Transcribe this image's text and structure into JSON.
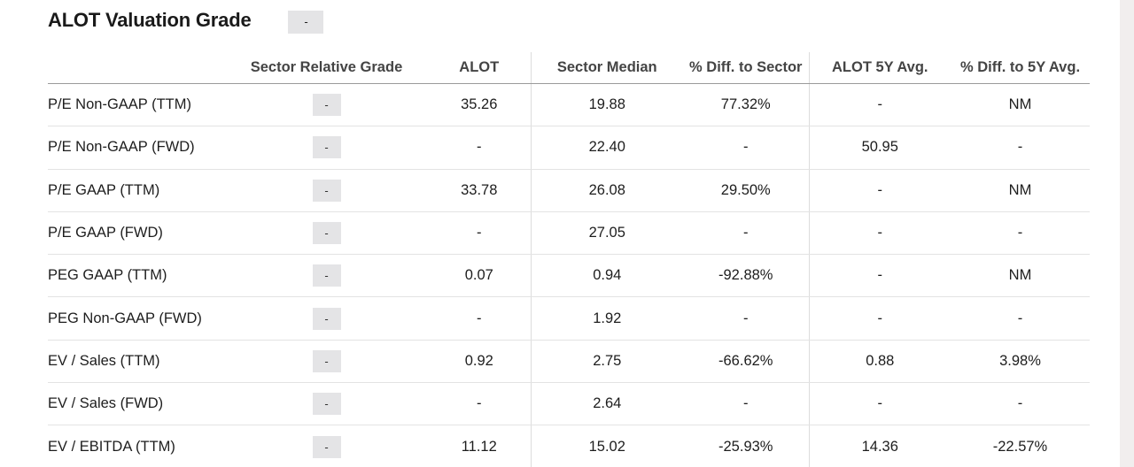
{
  "header": {
    "title": "ALOT Valuation Grade",
    "grade": "-"
  },
  "table": {
    "columns": [
      "",
      "Sector Relative Grade",
      "ALOT",
      "Sector Median",
      "% Diff. to Sector",
      "ALOT 5Y Avg.",
      "% Diff. to 5Y Avg."
    ],
    "rows": [
      {
        "metric": "P/E Non-GAAP (TTM)",
        "grade": "-",
        "alot": "35.26",
        "sector_median": "19.88",
        "diff_sector": "77.32%",
        "avg5y": "-",
        "diff_5y": "NM"
      },
      {
        "metric": "P/E Non-GAAP (FWD)",
        "grade": "-",
        "alot": "-",
        "sector_median": "22.40",
        "diff_sector": "-",
        "avg5y": "50.95",
        "diff_5y": "-"
      },
      {
        "metric": "P/E GAAP (TTM)",
        "grade": "-",
        "alot": "33.78",
        "sector_median": "26.08",
        "diff_sector": "29.50%",
        "avg5y": "-",
        "diff_5y": "NM"
      },
      {
        "metric": "P/E GAAP (FWD)",
        "grade": "-",
        "alot": "-",
        "sector_median": "27.05",
        "diff_sector": "-",
        "avg5y": "-",
        "diff_5y": "-"
      },
      {
        "metric": "PEG GAAP (TTM)",
        "grade": "-",
        "alot": "0.07",
        "sector_median": "0.94",
        "diff_sector": "-92.88%",
        "avg5y": "-",
        "diff_5y": "NM"
      },
      {
        "metric": "PEG Non-GAAP (FWD)",
        "grade": "-",
        "alot": "-",
        "sector_median": "1.92",
        "diff_sector": "-",
        "avg5y": "-",
        "diff_5y": "-"
      },
      {
        "metric": "EV / Sales (TTM)",
        "grade": "-",
        "alot": "0.92",
        "sector_median": "2.75",
        "diff_sector": "-66.62%",
        "avg5y": "0.88",
        "diff_5y": "3.98%"
      },
      {
        "metric": "EV / Sales (FWD)",
        "grade": "-",
        "alot": "-",
        "sector_median": "2.64",
        "diff_sector": "-",
        "avg5y": "-",
        "diff_5y": "-"
      },
      {
        "metric": "EV / EBITDA (TTM)",
        "grade": "-",
        "alot": "11.12",
        "sector_median": "15.02",
        "diff_sector": "-25.93%",
        "avg5y": "14.36",
        "diff_5y": "-22.57%"
      }
    ]
  }
}
